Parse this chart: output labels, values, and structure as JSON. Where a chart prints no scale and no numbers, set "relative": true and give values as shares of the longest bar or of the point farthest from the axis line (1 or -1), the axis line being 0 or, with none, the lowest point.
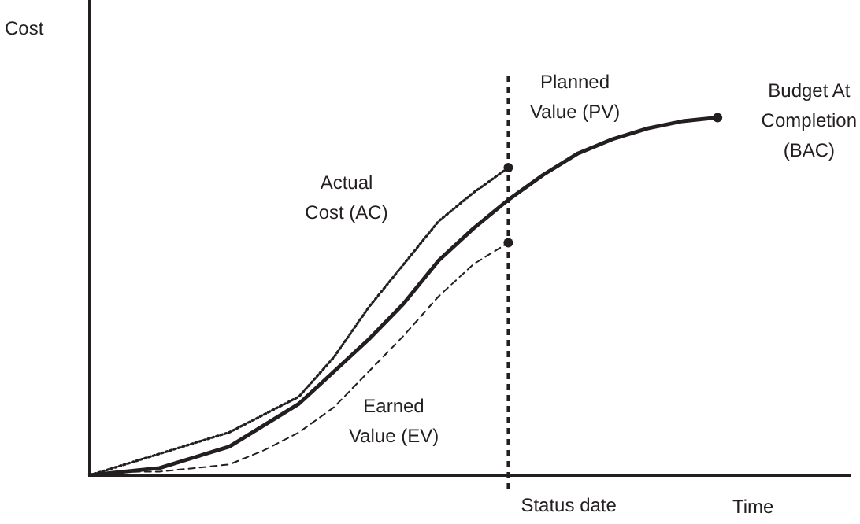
{
  "chart_data": {
    "type": "line",
    "xlabel": "Time",
    "ylabel": "Cost",
    "relative": true,
    "categories": [
      null,
      null,
      null,
      null,
      null,
      null,
      null,
      null,
      null,
      null,
      null,
      null,
      null,
      null,
      null,
      null,
      null,
      null,
      null,
      null,
      null,
      null
    ],
    "series": [
      {
        "name": "Planned Value (PV)",
        "color": "#231f20",
        "line_style": "solid",
        "values": [
          0,
          0.01,
          0.02,
          0.05,
          0.08,
          0.14,
          0.2,
          0.29,
          0.38,
          0.48,
          0.6,
          0.69,
          0.77,
          0.84,
          0.9,
          0.94,
          0.97,
          0.99,
          1,
          null,
          null,
          null
        ]
      },
      {
        "name": "Actual Cost (AC)",
        "color": "#231f20",
        "line_style": "dotted",
        "values": [
          0,
          0.03,
          0.06,
          0.09,
          0.12,
          0.17,
          0.22,
          0.33,
          0.47,
          0.59,
          0.71,
          0.79,
          0.86,
          null,
          null,
          null,
          null,
          null,
          null,
          null,
          null,
          null
        ]
      },
      {
        "name": "Earned Value (EV)",
        "color": "#231f20",
        "line_style": "dashed",
        "values": [
          0,
          0.01,
          0.01,
          0.02,
          0.03,
          0.07,
          0.12,
          0.19,
          0.29,
          0.39,
          0.5,
          0.59,
          0.65,
          null,
          null,
          null,
          null,
          null,
          null,
          null,
          null,
          null
        ]
      }
    ],
    "ref_lines": [
      {
        "axis": "x",
        "label": "Status date",
        "line_style": "dashed",
        "color": "#231f20"
      }
    ],
    "annotations": [
      "Budget At Completion (BAC)"
    ]
  }
}
